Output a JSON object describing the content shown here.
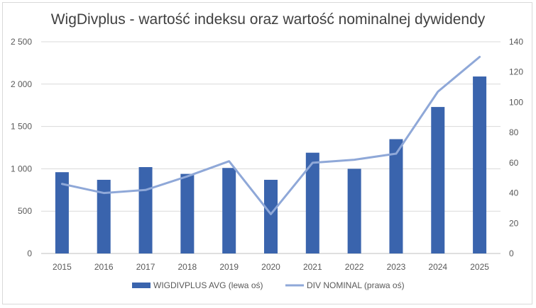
{
  "chart_data": {
    "type": "bar",
    "title": "WigDivplus - wartość indeksu oraz wartość nominalnej dywidendy",
    "categories": [
      "2015",
      "2016",
      "2017",
      "2018",
      "2019",
      "2020",
      "2021",
      "2022",
      "2023",
      "2024",
      "2025"
    ],
    "series": [
      {
        "name": "WIGDIVPLUS AVG (lewa oś)",
        "type": "bar",
        "axis": "left",
        "color": "#3a64ad",
        "values": [
          960,
          870,
          1020,
          940,
          1010,
          870,
          1190,
          1000,
          1350,
          1730,
          2090
        ]
      },
      {
        "name": "DIV NOMINAL (prawa oś)",
        "type": "line",
        "axis": "right",
        "color": "#8fa8d8",
        "values": [
          46,
          40,
          42,
          51,
          61,
          26,
          60,
          62,
          66,
          107,
          130
        ]
      }
    ],
    "y_left": {
      "min": 0,
      "max": 2500,
      "ticks": [
        "0",
        "500",
        "1 000",
        "1 500",
        "2 000",
        "2 500"
      ]
    },
    "y_right": {
      "min": 0,
      "max": 140,
      "ticks": [
        "0",
        "20",
        "40",
        "60",
        "80",
        "100",
        "120",
        "140"
      ]
    },
    "grid": true,
    "legend_position": "bottom"
  }
}
